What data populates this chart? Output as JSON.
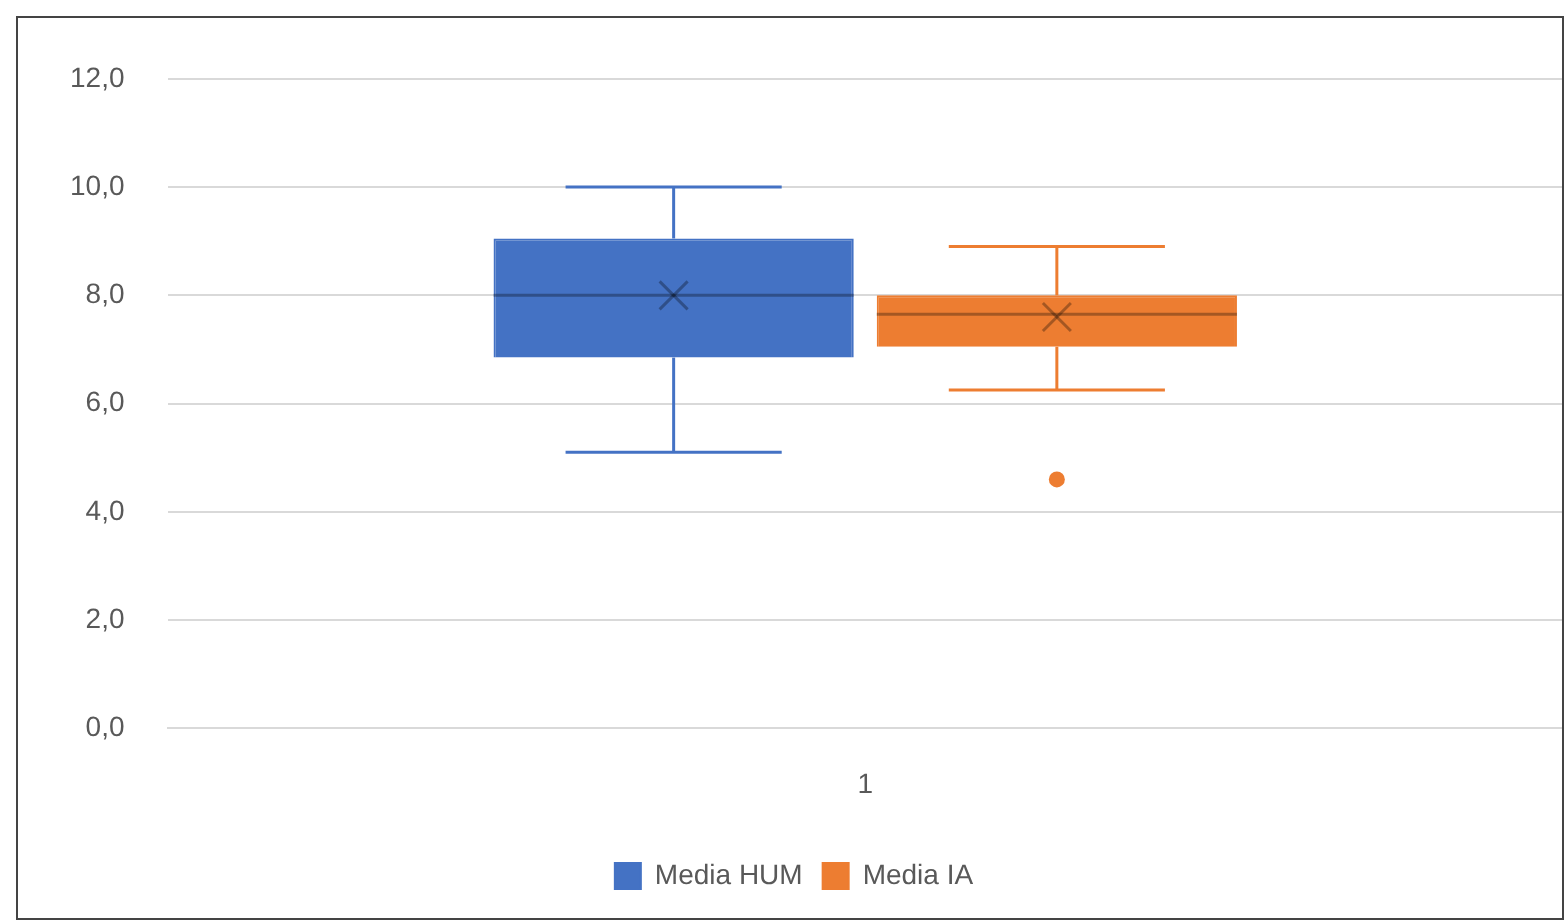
{
  "chart_data": {
    "type": "box",
    "categories": [
      "1"
    ],
    "series": [
      {
        "name": "Media HUM",
        "color": "#4472c4",
        "boxes": [
          {
            "low": 5.1,
            "q1": 6.85,
            "median": 8.0,
            "q3": 9.05,
            "high": 10.0,
            "mean": 8.0
          }
        ]
      },
      {
        "name": "Media IA",
        "color": "#ed7d31",
        "boxes": [
          {
            "low": 6.25,
            "q1": 7.05,
            "median": 7.65,
            "q3": 8.0,
            "high": 8.9,
            "mean": 7.6,
            "outliers": [
              4.6
            ]
          }
        ]
      }
    ],
    "ylim": [
      0,
      12
    ],
    "yticks": [
      {
        "value": 0,
        "label": "0,0"
      },
      {
        "value": 2,
        "label": "2,0"
      },
      {
        "value": 4,
        "label": "4,0"
      },
      {
        "value": 6,
        "label": "6,0"
      },
      {
        "value": 8,
        "label": "8,0"
      },
      {
        "value": 10,
        "label": "10,0"
      },
      {
        "value": 12,
        "label": "12,0"
      }
    ],
    "grid": "y",
    "legend": "bottom"
  }
}
